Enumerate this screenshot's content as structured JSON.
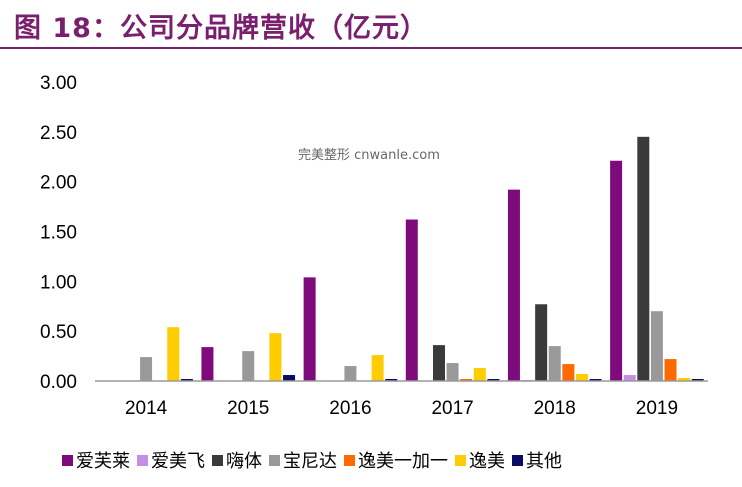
{
  "figure": {
    "title": "图 18：公司分品牌营收（亿元）",
    "watermark": "完美整形 cnwanle.com"
  },
  "chart_data": {
    "type": "bar",
    "title": "图 18：公司分品牌营收（亿元）",
    "xlabel": "",
    "ylabel": "",
    "categories": [
      "2014",
      "2015",
      "2016",
      "2017",
      "2018",
      "2019"
    ],
    "ylim": [
      0,
      3
    ],
    "yticks": [
      0,
      0.5,
      1,
      1.5,
      2,
      2.5,
      3
    ],
    "ytick_labels": [
      "0.00",
      "0.50",
      "1.00",
      "1.50",
      "2.00",
      "2.50",
      "3.00"
    ],
    "grid": false,
    "legend_position": "bottom",
    "series": [
      {
        "name": "爱芙莱",
        "color": "#7f0a7b",
        "values": [
          0,
          0.34,
          1.04,
          1.62,
          1.92,
          2.21
        ]
      },
      {
        "name": "爱美飞",
        "color": "#c38fe6",
        "values": [
          0,
          0,
          0,
          0,
          0.01,
          0.06
        ]
      },
      {
        "name": "嗨体",
        "color": "#3a3a3a",
        "values": [
          0,
          0,
          0,
          0.36,
          0.77,
          2.45
        ]
      },
      {
        "name": "宝尼达",
        "color": "#999999",
        "values": [
          0.24,
          0.3,
          0.15,
          0.18,
          0.35,
          0.7
        ]
      },
      {
        "name": "逸美一加一",
        "color": "#ff6a00",
        "values": [
          0,
          0,
          0,
          0.02,
          0.17,
          0.22
        ]
      },
      {
        "name": "逸美",
        "color": "#ffcc00",
        "values": [
          0.54,
          0.48,
          0.26,
          0.13,
          0.07,
          0.03
        ]
      },
      {
        "name": "其他",
        "color": "#0b0b66",
        "values": [
          0.02,
          0.06,
          0.02,
          0.02,
          0.02,
          0.02
        ]
      }
    ]
  }
}
